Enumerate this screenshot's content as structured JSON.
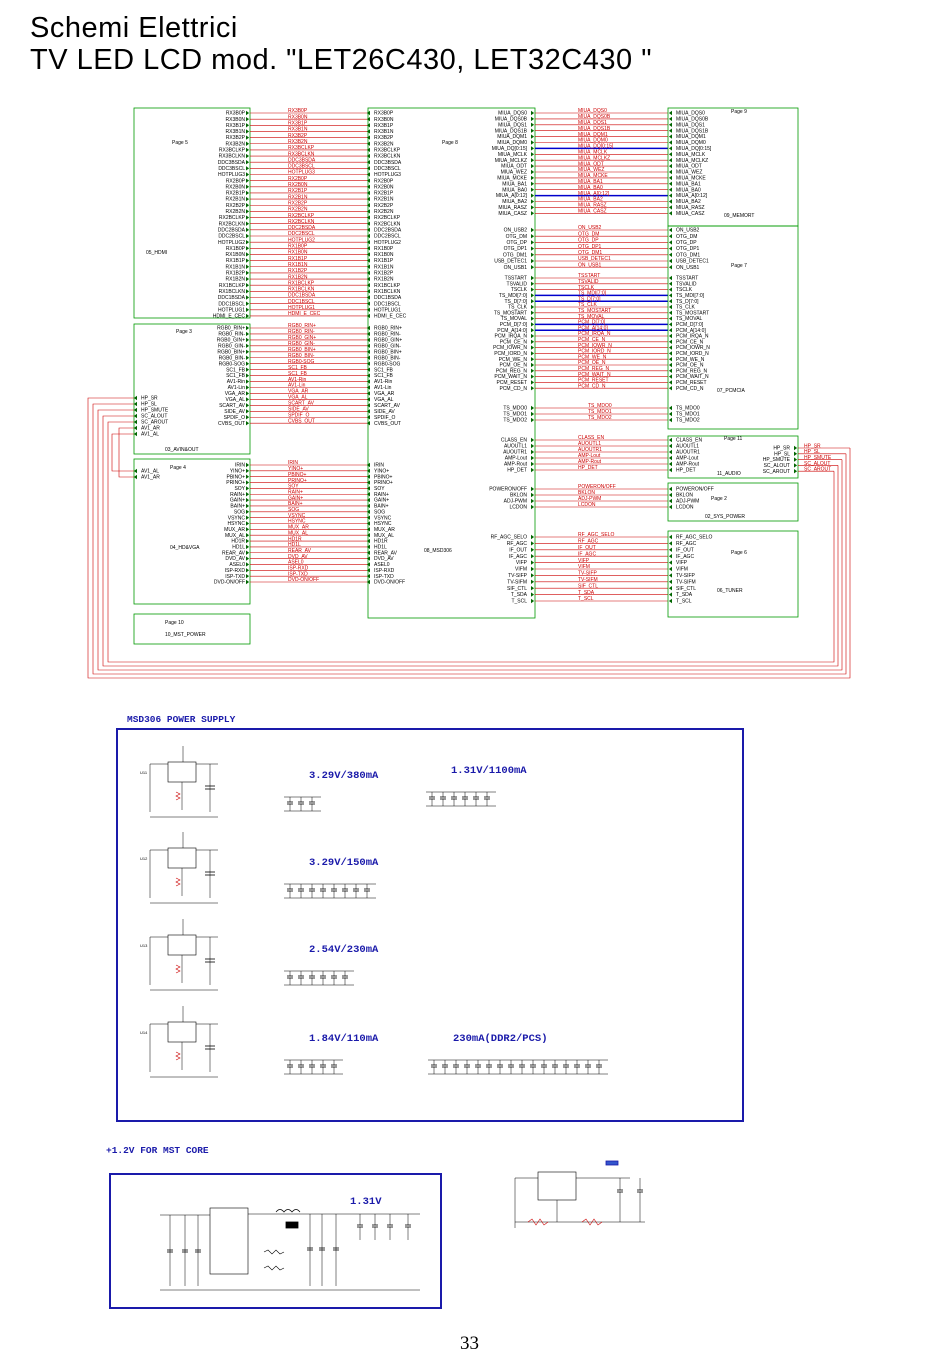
{
  "header": {
    "title": "Schemi Elettrici",
    "subtitle": "TV LED LCD mod. \"LET26C430, LET32C430 \""
  },
  "page_number": "33",
  "blocks": {
    "hdmi": {
      "page": "Page 5",
      "name": "05_HDMI"
    },
    "avin": {
      "page": "Page 3",
      "name": "03_AVIN&OUT"
    },
    "hdvga": {
      "page": "Page 4",
      "name": "04_HD&VGA"
    },
    "mst_power": {
      "page": "Page 10",
      "name": "10_MST_POWER"
    },
    "msd306": {
      "page": "Page 8",
      "name": "08_MSD306"
    },
    "memory": {
      "page": "Page 9",
      "name": "09_MEMORT"
    },
    "pcmcia": {
      "page": "Page 7",
      "name": "07_PCMCIA"
    },
    "audio": {
      "page": "Page 11",
      "name": "11_AUDIO"
    },
    "sys_power": {
      "page": "Page 2",
      "name": "02_SYS_POWER"
    },
    "tuner": {
      "page": "Page 6",
      "name": "06_TUNER"
    }
  },
  "hdmi_pins": [
    "RX3B0P",
    "RX3B0N",
    "RX3B1P",
    "RX3B1N",
    "RX3B2P",
    "RX3B2N",
    "RX3BCLKP",
    "RX3BCLKN",
    "DDC3BSDA",
    "DDC3BSCL",
    "HOTPLUG3",
    "RX2B0P",
    "RX2B0N",
    "RX2B1P",
    "RX2B1N",
    "RX2B2P",
    "RX2B2N",
    "RX2BCLKP",
    "RX2BCLKN",
    "DDC2BSDA",
    "DDC2BSCL",
    "HOTPLUG2",
    "RX1B0P",
    "RX1B0N",
    "RX1B1P",
    "RX1B1N",
    "RX1B2P",
    "RX1B2N",
    "RX1BCLKP",
    "RX1BCLKN",
    "DDC1BSDA",
    "DDC1BSCL",
    "HOTPLUG1",
    "HDMI_E_CEC"
  ],
  "avin_right_pins": [
    "RGB0_RIN+",
    "RGB0_RIN-",
    "RGB0_GIN+",
    "RGB0_GIN-",
    "RGB0_BIN+",
    "RGB0_BIN-",
    "RGB0-SOG",
    "SC1_FB",
    "SC1_FB",
    "AV1-Rin",
    "AV1-Lin",
    "VGA_AR",
    "VGA_AL",
    "SCART_AV",
    "SIDE_AV",
    "SPDIF_O",
    "CVBS_OUT"
  ],
  "avin_left_pins": [
    "HP_SR",
    "HP_SL",
    "HP_SMUTE",
    "SC_ALOUT",
    "SC_AROUT",
    "AV1_AR",
    "AV1_AL"
  ],
  "hdvga_left_pins": [
    "AV1_AL",
    "AV1_AR"
  ],
  "hdvga_right_pins": [
    "IRIN",
    "YINO+",
    "PBINO+",
    "PRINO+",
    "SOY",
    "RAIN+",
    "GAIN+",
    "BAIN+",
    "SOG",
    "VSYNC",
    "HSYNC",
    "MUX_AR",
    "MUX_AL",
    "HD1R",
    "HD1L",
    "REAR_AV",
    "DVD_AV",
    "ASEL0",
    "ISP-RXD",
    "ISP-TXD",
    "DVD-ON/OFF"
  ],
  "mem_pins": [
    "MIUA_DQS0",
    "MIUA_DQS0B",
    "MIUA_DQS1",
    "MIUA_DQS1B",
    "MIUA_DQM1",
    "MIUA_DQM0",
    "MIUA_DQ[0:15]",
    "MIUA_MCLK",
    "MIUA_MCLKZ",
    "MIUA_ODT",
    "MIUA_WEZ",
    "MIUA_MCKE",
    "MIUA_BA1",
    "MIUA_BA0",
    "MIUA_A[0:12]",
    "MIUA_BA2",
    "MIUA_RASZ",
    "MIUA_CASZ"
  ],
  "usb_pins": [
    "ON_USB2",
    "OTG_DM",
    "OTG_DP",
    "OTG_DP1",
    "OTG_DM1",
    "USB_DETEC1",
    "ON_USB1"
  ],
  "ts_pins": [
    "TSSTART",
    "TSVALID",
    "TSCLK",
    "TS_MDI[7:0]",
    "TS_D[7:0]",
    "TS_CLK",
    "TS_MOSTART",
    "TS_MOVAL",
    "PCM_D[7:0]",
    "PCM_A[14:0]",
    "PCM_IRQA_N",
    "PCM_CE_N",
    "PCM_IOWR_N",
    "PCM_IORD_N",
    "PCM_WE_N",
    "PCM_OE_N",
    "PCM_REG_N",
    "PCM_WAIT_N",
    "PCM_RESET",
    "PCM_CD_N"
  ],
  "tsmdo_pins": [
    "TS_MDO0",
    "TS_MDO1",
    "TS_MDO2"
  ],
  "audio_pins": [
    "CLASS_EN",
    "AUOUTL1",
    "AUOUTR1",
    "AMP-Lout",
    "AMP-Rout",
    "HP_DET"
  ],
  "audio_right_pins": [
    "HP_SR",
    "HP_SL",
    "HP_SMUTE",
    "SC_ALOUT",
    "SC_AROUT"
  ],
  "syspower_pins": [
    "POWERON/OFF",
    "BKLON",
    "ADJ-PWM",
    "LCDON"
  ],
  "tuner_pins": [
    "RF_AGC_SELO",
    "RF_AGC",
    "IF_OUT",
    "IF_AGC",
    "VIFP",
    "VIFM",
    "TV-SIFP",
    "TV-SIFM",
    "SIF_CTL",
    "T_SDA",
    "T_SCL"
  ],
  "power_supply": {
    "title": "MSD306 POWER SUPPLY",
    "rails": [
      "3.29V/380mA",
      "3.29V/150mA",
      "2.54V/230mA",
      "1.84V/110mA",
      "1.31V/1100mA",
      "230mA(DDR2/PCS)"
    ]
  },
  "core": {
    "title": "+1.2V FOR MST CORE",
    "rail": "1.31V"
  },
  "colors": {
    "wire": "#cc0000",
    "bus": "#0000cc",
    "box": "#009900",
    "frame": "#1a1aaa"
  }
}
